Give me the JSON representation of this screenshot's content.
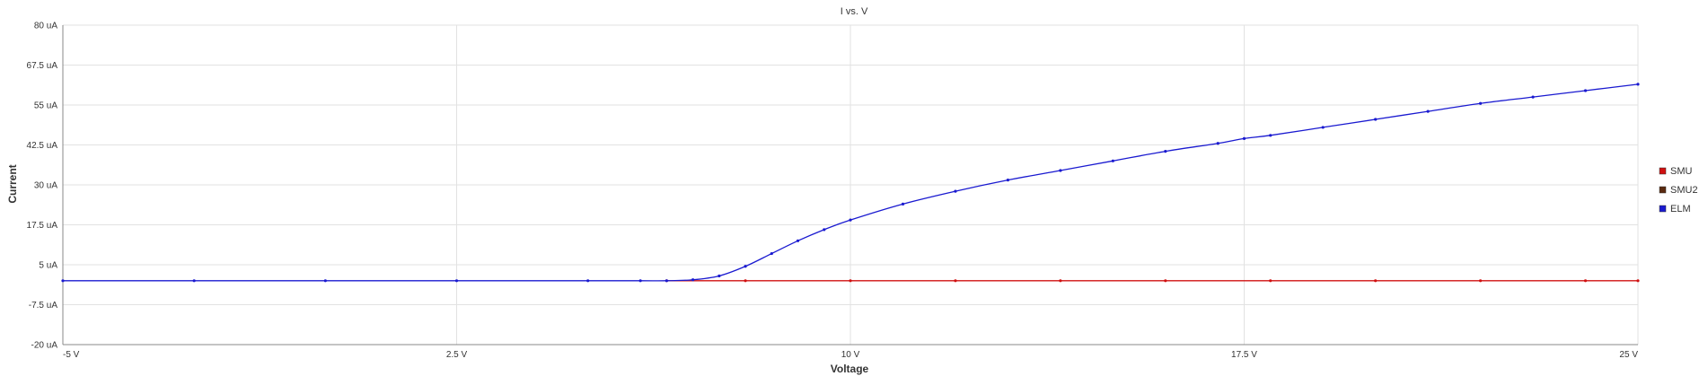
{
  "chart_data": {
    "type": "line",
    "title": "I vs. V",
    "xlabel": "Voltage",
    "ylabel": "Current",
    "xlim": [
      -5,
      25
    ],
    "ylim": [
      -20,
      80
    ],
    "x_ticks": [
      -5,
      2.5,
      10,
      17.5,
      25
    ],
    "x_tick_labels": [
      "-5 V",
      "2.5 V",
      "10 V",
      "17.5 V",
      "25 V"
    ],
    "y_ticks": [
      -20,
      -7.5,
      5,
      17.5,
      30,
      42.5,
      55,
      67.5,
      80
    ],
    "y_tick_labels": [
      "-20 uA",
      "-7.5 uA",
      "5 uA",
      "17.5 uA",
      "30 uA",
      "42.5 uA",
      "55 uA",
      "67.5 uA",
      "80 uA"
    ],
    "grid": true,
    "legend_position": "right",
    "series": [
      {
        "name": "SMU",
        "color": "#d01010",
        "x": [
          6.5,
          8,
          10,
          12,
          14,
          16,
          18,
          20,
          22,
          24,
          25
        ],
        "y": [
          0,
          0,
          0,
          0,
          0,
          0,
          0,
          0,
          0,
          0,
          0
        ]
      },
      {
        "name": "SMU2",
        "color": "#5a2a10",
        "x": [],
        "y": []
      },
      {
        "name": "ELM",
        "color": "#1a1ad0",
        "x": [
          -5,
          -2.5,
          0,
          2.5,
          5,
          6,
          6.5,
          7,
          7.5,
          8,
          8.5,
          9,
          9.5,
          10,
          11,
          12,
          13,
          14,
          15,
          16,
          17,
          17.5,
          18,
          19,
          20,
          21,
          22,
          23,
          24,
          25
        ],
        "y": [
          0,
          0,
          0,
          0,
          0,
          0,
          0,
          0.3,
          1.5,
          4.5,
          8.5,
          12.5,
          16,
          19,
          24,
          28,
          31.5,
          34.5,
          37.5,
          40.5,
          43,
          44.5,
          45.5,
          48,
          50.5,
          53,
          55.5,
          57.5,
          59.5,
          61.5
        ]
      }
    ]
  }
}
